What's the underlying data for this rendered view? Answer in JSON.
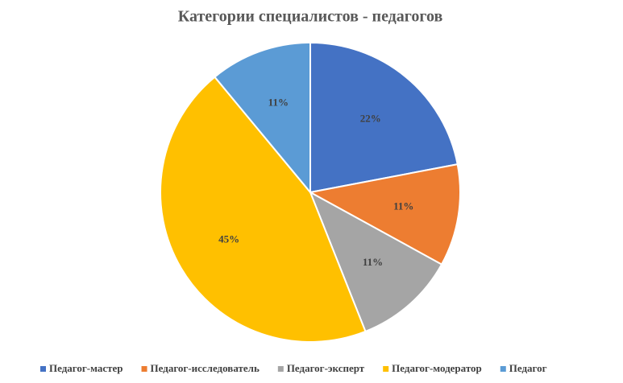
{
  "chart_data": {
    "type": "pie",
    "title": "Категории  специалистов - педагогов",
    "categories": [
      "Педагог-мастер",
      "Педагог-исследователь",
      "Педагог-эксперт",
      "Педагог-модератор",
      "Педагог"
    ],
    "values": [
      22,
      11,
      11,
      45,
      11
    ],
    "value_labels": [
      "22%",
      "11%",
      "11%",
      "45%",
      "11%"
    ],
    "colors": [
      "#4472c4",
      "#ed7d31",
      "#a5a5a5",
      "#ffc000",
      "#5b9bd5"
    ],
    "legend": "bottom"
  }
}
